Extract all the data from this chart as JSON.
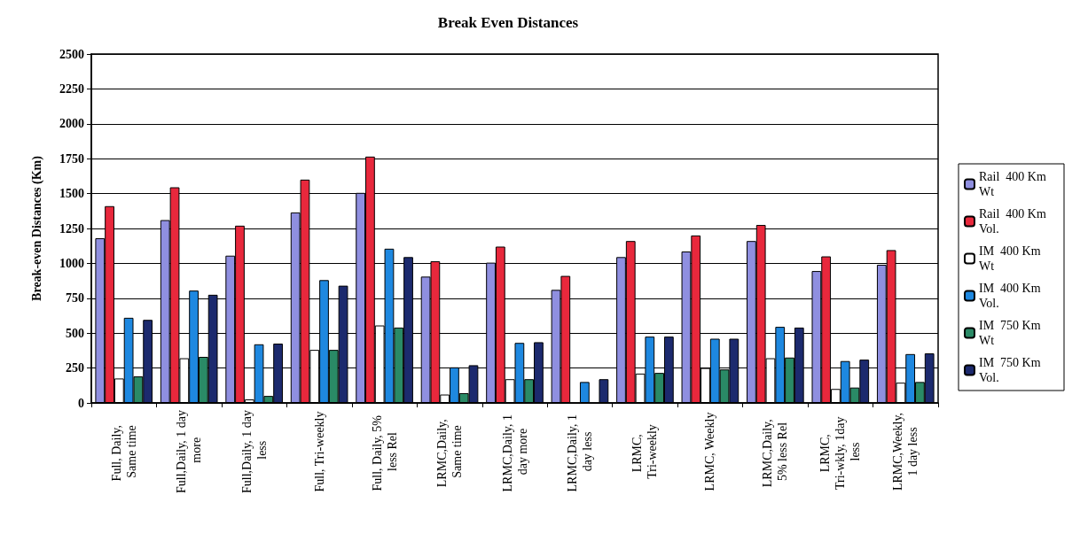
{
  "chart_data": {
    "type": "bar",
    "title": "Break Even Distances",
    "ylabel": "Break-even Distances (Km)",
    "categories": [
      "Full, Daily, Same time",
      "Full,Daily, 1 day more",
      "Full,Daily, 1 day less",
      "Full, Tri-weekly",
      "Full, Daily, 5% less Rel",
      "LRMC,Daily, Same time",
      "LRMC,Daily, 1 day more",
      "LRMC,Daily, 1 day less",
      "LRMC, Tri-weekly",
      "LRMC, Weekly",
      "LRMC,Daily, 5% less Rel",
      "LRMC, Tri-wkly, 1day less",
      "LRMC,Weekly,1 day less"
    ],
    "series": [
      {
        "name": "Rail  400 Km Wt",
        "color": "#8f8fe0",
        "values": [
          1180,
          1310,
          1055,
          1365,
          1505,
          905,
          1005,
          810,
          1045,
          1085,
          1160,
          945,
          990
        ]
      },
      {
        "name": "Rail  400 Km Vol.",
        "color": "#e8283c",
        "values": [
          1410,
          1545,
          1270,
          1600,
          1765,
          1015,
          1120,
          910,
          1160,
          1200,
          1275,
          1050,
          1095
        ]
      },
      {
        "name": "IM  400 Km Wt",
        "color": "#ffffff",
        "values": [
          175,
          320,
          25,
          380,
          555,
          60,
          170,
          null,
          210,
          250,
          320,
          100,
          145
        ]
      },
      {
        "name": "IM  400 Km Vol.",
        "color": "#1e88e0",
        "values": [
          610,
          805,
          420,
          880,
          1105,
          255,
          430,
          150,
          475,
          460,
          545,
          300,
          350
        ]
      },
      {
        "name": "IM  750 Km Wt",
        "color": "#2a8a66",
        "values": [
          190,
          330,
          50,
          380,
          540,
          70,
          170,
          null,
          215,
          240,
          325,
          110,
          150
        ]
      },
      {
        "name": "IM  750 Km Vol.",
        "color": "#1c2a6e",
        "values": [
          595,
          775,
          425,
          840,
          1045,
          270,
          435,
          170,
          475,
          460,
          540,
          310,
          355
        ]
      }
    ],
    "ylim": [
      0,
      2500
    ],
    "yticks": [
      0,
      250,
      500,
      750,
      1000,
      1250,
      1500,
      1750,
      2000,
      2250,
      2500
    ],
    "grid": "y",
    "legend": "right"
  }
}
